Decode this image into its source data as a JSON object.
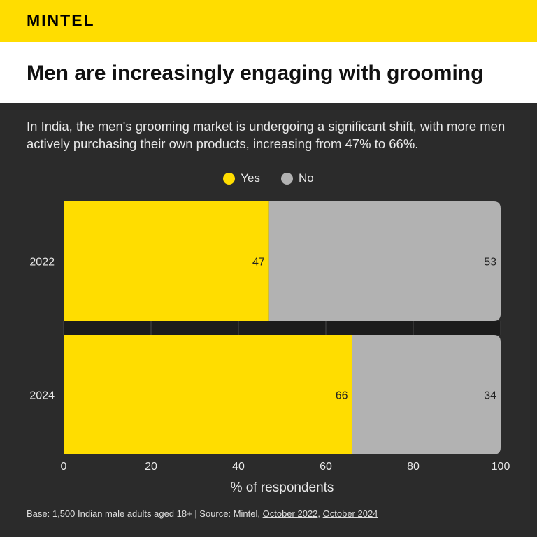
{
  "header": {
    "brand": "MINTEL"
  },
  "title": "Men are increasingly engaging with grooming",
  "subtitle": "In India, the men's grooming market is undergoing a significant shift, with more men actively purchasing their own products, increasing from 47% to 66%.",
  "colors": {
    "yes": "#ffdd00",
    "no": "#b2b2b2",
    "background": "#2b2b2b",
    "brand": "#ffdd00"
  },
  "footer": {
    "base_text": "Base: 1,500 Indian male adults aged 18+ | Source: Mintel, ",
    "link1": "October 2022",
    "separator": ", ",
    "link2": "October 2024"
  },
  "chart_data": {
    "type": "bar",
    "orientation": "horizontal",
    "stacked": true,
    "categories": [
      "2022",
      "2024"
    ],
    "series": [
      {
        "name": "Yes",
        "values": [
          47,
          66
        ]
      },
      {
        "name": "No",
        "values": [
          53,
          34
        ]
      }
    ],
    "xlabel": "% of respondents",
    "ylabel": "",
    "xlim": [
      0,
      100
    ],
    "xticks": [
      0,
      20,
      40,
      60,
      80,
      100
    ],
    "legend": "top-center",
    "grid": true
  }
}
